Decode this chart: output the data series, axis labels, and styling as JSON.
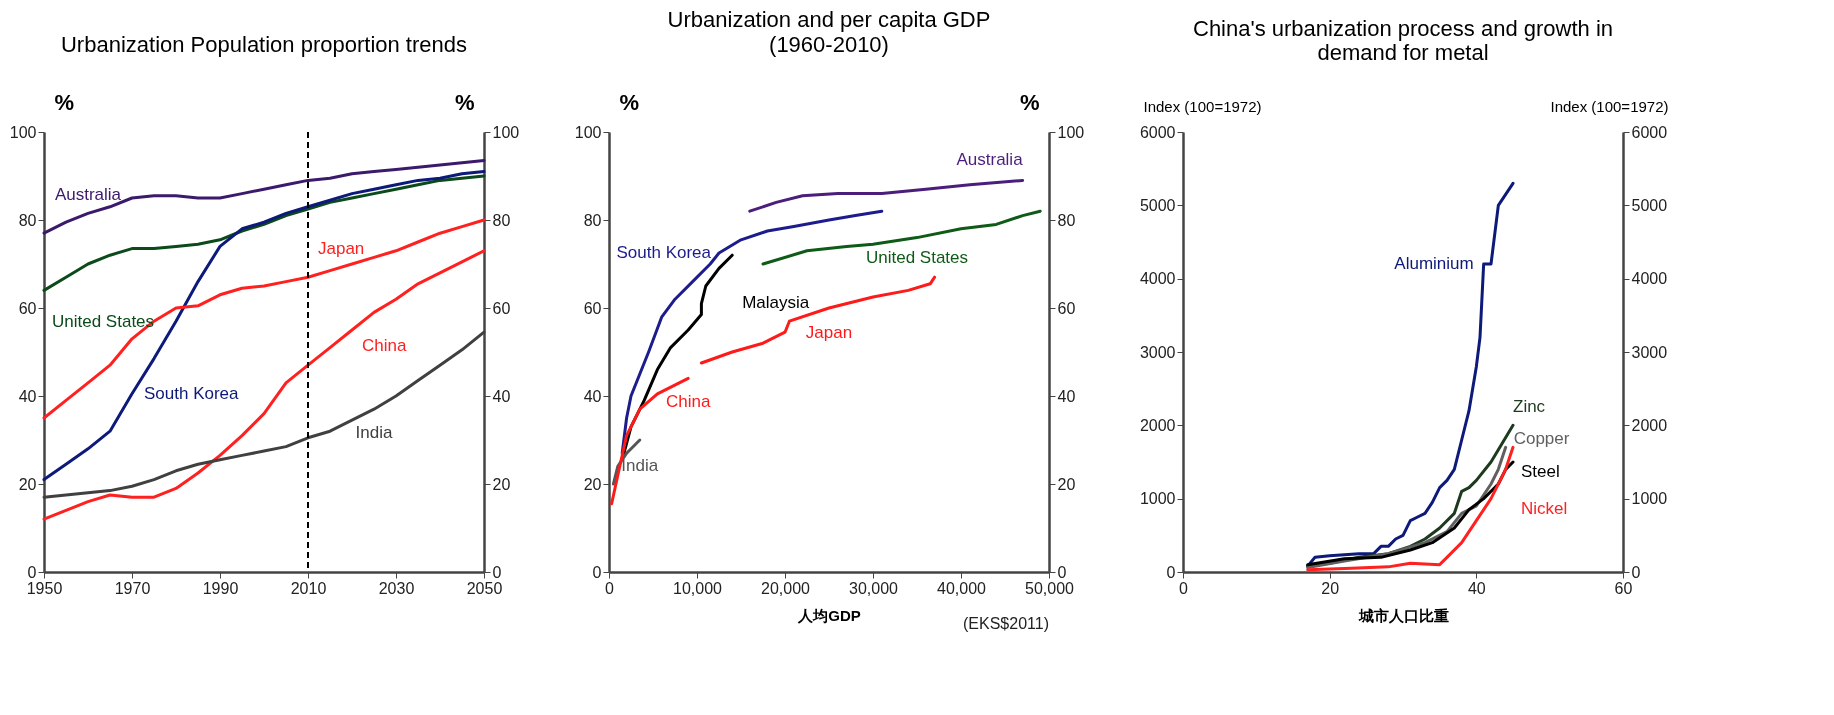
{
  "chart_data": [
    {
      "type": "line",
      "title": "Urbanization Population proportion trends",
      "ylabel": "%",
      "y2label": "%",
      "x": [
        1950,
        1955,
        1960,
        1965,
        1970,
        1975,
        1980,
        1985,
        1990,
        1995,
        2000,
        2005,
        2010,
        2015,
        2020,
        2025,
        2030,
        2035,
        2040,
        2045,
        2050
      ],
      "xlim": [
        1950,
        2050
      ],
      "xticks": [
        1950,
        1970,
        1990,
        2010,
        2030,
        2050
      ],
      "ylim": [
        0,
        100
      ],
      "yticks": [
        0,
        20,
        40,
        60,
        80,
        100
      ],
      "y2lim": [
        0,
        100
      ],
      "y2ticks": [
        0,
        20,
        40,
        60,
        80,
        100
      ],
      "series": [
        {
          "name": "Australia",
          "color": "#3b1a6b",
          "values": [
            77,
            79.5,
            81.5,
            83,
            85,
            85.5,
            85.5,
            85,
            85,
            86,
            87,
            88,
            89,
            89.5,
            90.5,
            91,
            91.5,
            92,
            92.5,
            93,
            93.5
          ]
        },
        {
          "name": "United States",
          "color": "#0b4a1a",
          "values": [
            64,
            67,
            70,
            72,
            73.5,
            73.5,
            74,
            74.5,
            75.5,
            77.5,
            79,
            81,
            82.5,
            84,
            85,
            86,
            87,
            88,
            89,
            89.5,
            90
          ]
        },
        {
          "name": "South Korea",
          "color": "#0d1a7a",
          "values": [
            21,
            24.5,
            28,
            32,
            40.5,
            48.5,
            57,
            66,
            74,
            78,
            79.5,
            81.5,
            83,
            84.5,
            86,
            87,
            88,
            89,
            89.5,
            90.5,
            91
          ]
        },
        {
          "name": "Japan",
          "color": "#ff2020",
          "values": [
            35,
            39,
            43,
            47,
            53,
            57,
            60,
            60.5,
            63,
            64.5,
            65,
            66,
            67,
            68.5,
            70,
            71.5,
            73,
            75,
            77,
            78.5,
            80
          ]
        },
        {
          "name": "China",
          "color": "#ff2020",
          "values": [
            12,
            14,
            16,
            17.5,
            17,
            17,
            19,
            22.5,
            26.5,
            31,
            36,
            43,
            47,
            51,
            55,
            59,
            62,
            65.5,
            68,
            70.5,
            73
          ]
        },
        {
          "name": "India",
          "color": "#404040",
          "values": [
            17,
            17.5,
            18,
            18.5,
            19.5,
            21,
            23,
            24.5,
            25.5,
            26.5,
            27.5,
            28.5,
            30.5,
            32,
            34.5,
            37,
            40,
            43.5,
            47,
            50.5,
            54.5
          ]
        }
      ],
      "ref_lines": [
        {
          "axis": "x",
          "value": 2010,
          "line_style": "dashed",
          "color": "#000000"
        }
      ]
    },
    {
      "type": "line",
      "title": "Urbanization and per capita GDP",
      "subtitle": "(1960-2010)",
      "ylabel": "%",
      "y2label": "%",
      "xlabel": "人均GDP",
      "annotations": [
        "(EKS$2011)"
      ],
      "xlim": [
        0,
        50000
      ],
      "xticks": [
        0,
        {
          "value": 10000,
          "label": "10,000"
        },
        {
          "value": 20000,
          "label": "20,000"
        },
        {
          "value": 30000,
          "label": "30,000"
        },
        {
          "value": 40000,
          "label": "40,000"
        },
        {
          "value": 50000,
          "label": "50,000"
        }
      ],
      "ylim": [
        0,
        100
      ],
      "yticks": [
        0,
        20,
        40,
        60,
        80,
        100
      ],
      "y2lim": [
        0,
        100
      ],
      "y2ticks": [
        0,
        20,
        40,
        60,
        80,
        100
      ],
      "series": [
        {
          "name": "Australia",
          "color": "#4b1e7c",
          "x": [
            16000,
            19000,
            22000,
            26000,
            31000,
            36000,
            41000,
            47000
          ],
          "values": [
            82,
            84,
            85.5,
            86,
            86,
            87,
            88,
            89
          ]
        },
        {
          "name": "South Korea",
          "color": "#1c1c8c",
          "x": [
            1500,
            2000,
            2500,
            3500,
            4500,
            6000,
            7500,
            9500,
            11500,
            12500,
            15000,
            18000,
            21000,
            25000,
            28000,
            31000
          ],
          "values": [
            27,
            35,
            40,
            45,
            50,
            58,
            62,
            66,
            70,
            72.5,
            75.5,
            77.5,
            78.5,
            80,
            81,
            82
          ]
        },
        {
          "name": "Malaysia",
          "color": "#000000",
          "x": [
            1700,
            2500,
            4000,
            5500,
            7000,
            9000,
            10500,
            10500,
            11000,
            12500,
            14000
          ],
          "values": [
            27,
            33,
            39,
            46,
            51,
            55,
            58.5,
            61,
            65,
            69,
            72
          ]
        },
        {
          "name": "India",
          "color": "#555555",
          "x": [
            500,
            1000,
            2000,
            3500
          ],
          "values": [
            20,
            24,
            27,
            30
          ]
        },
        {
          "name": "China",
          "color": "#ff1a1a",
          "x": [
            300,
            1000,
            2000,
            3500,
            5500,
            9000
          ],
          "values": [
            15.5,
            22,
            31,
            37,
            40.5,
            44
          ]
        },
        {
          "name": "Japan",
          "color": "#ff1a1a",
          "x": [
            10500,
            14000,
            17500,
            20000,
            20500,
            25000,
            30000,
            34000,
            36500,
            37000
          ],
          "values": [
            47.5,
            50,
            52,
            54.5,
            57,
            60,
            62.5,
            64,
            65.5,
            67
          ]
        },
        {
          "name": "United States",
          "color": "#0e5a16",
          "x": [
            17500,
            22500,
            27000,
            30000,
            35000,
            40000,
            44000,
            47000,
            49000
          ],
          "values": [
            70,
            73,
            74,
            74.5,
            76,
            78,
            79,
            81,
            82
          ]
        }
      ]
    },
    {
      "type": "line",
      "title": "China's urbanization process and growth in demand for metal",
      "ylabel": "Index (100=1972)",
      "y2label": "Index (100=1972)",
      "xlabel": "城市人口比重",
      "xlim": [
        0,
        60
      ],
      "xticks": [
        0,
        20,
        40,
        60
      ],
      "ylim": [
        0,
        6000
      ],
      "yticks": [
        0,
        1000,
        2000,
        3000,
        4000,
        5000,
        6000
      ],
      "y2lim": [
        0,
        6000
      ],
      "y2ticks": [
        0,
        1000,
        2000,
        3000,
        4000,
        5000,
        6000
      ],
      "series": [
        {
          "name": "Aluminium",
          "color": "#0d1a7a",
          "x": [
            17,
            18,
            20,
            24,
            26,
            27,
            28,
            29,
            30,
            31,
            32,
            33,
            34,
            35,
            36,
            37,
            38,
            39,
            40,
            40.5,
            41,
            42,
            43,
            45
          ],
          "values": [
            80,
            200,
            220,
            250,
            250,
            350,
            350,
            450,
            500,
            700,
            750,
            800,
            950,
            1150,
            1250,
            1400,
            1800,
            2200,
            2800,
            3200,
            4200,
            4200,
            5000,
            5300
          ]
        },
        {
          "name": "Zinc",
          "color": "#1e3a1e",
          "x": [
            17,
            20,
            24,
            28,
            31,
            33,
            35,
            37,
            38,
            39,
            40,
            42,
            45
          ],
          "values": [
            80,
            120,
            200,
            250,
            350,
            450,
            600,
            800,
            1100,
            1150,
            1250,
            1500,
            2000
          ]
        },
        {
          "name": "Copper",
          "color": "#606060",
          "x": [
            17,
            22,
            28,
            33,
            36,
            38,
            40,
            42,
            43,
            44
          ],
          "values": [
            60,
            150,
            250,
            400,
            550,
            800,
            900,
            1200,
            1400,
            1700
          ]
        },
        {
          "name": "Steel",
          "color": "#000000",
          "x": [
            17,
            22,
            27,
            31,
            34,
            37,
            39,
            41,
            43,
            44,
            45
          ],
          "values": [
            100,
            180,
            200,
            300,
            400,
            600,
            850,
            1000,
            1200,
            1400,
            1500
          ]
        },
        {
          "name": "Nickel",
          "color": "#ff2020",
          "x": [
            17,
            23,
            28,
            31,
            35,
            36,
            38,
            40,
            42,
            44,
            45
          ],
          "values": [
            30,
            50,
            70,
            120,
            100,
            200,
            400,
            700,
            1000,
            1400,
            1700
          ]
        }
      ]
    }
  ]
}
